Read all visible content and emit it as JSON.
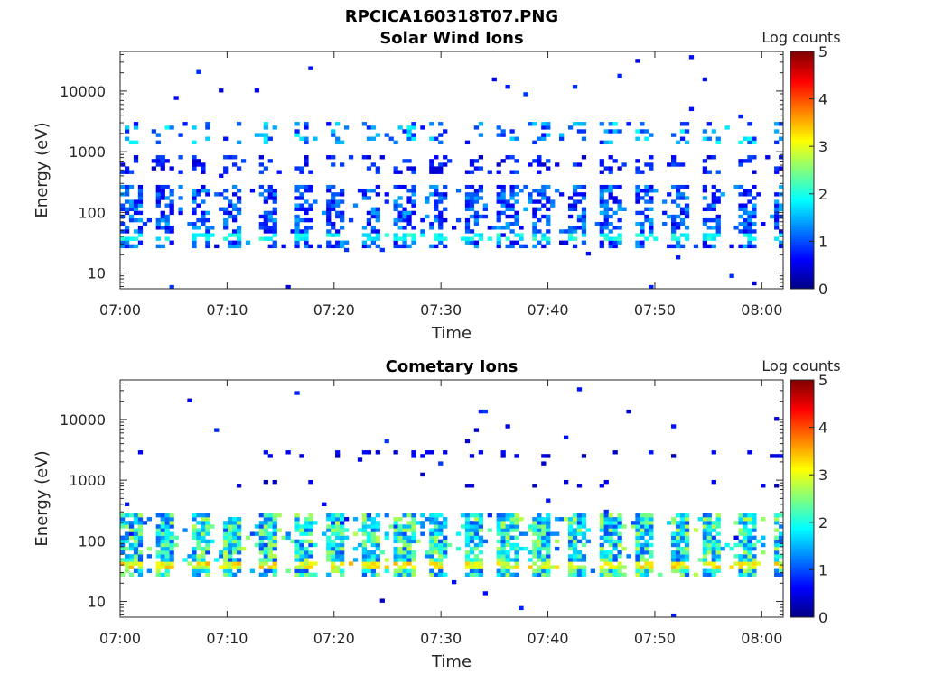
{
  "figure_title": "RPCICA160318T07.PNG",
  "chart_data": [
    {
      "type": "heatmap",
      "title": "Solar Wind Ions",
      "xlabel": "Time",
      "ylabel": "Energy (eV)",
      "x_ticks": [
        "07:00",
        "07:10",
        "07:20",
        "07:30",
        "07:40",
        "07:50",
        "08:00"
      ],
      "xlim": [
        "07:00",
        "08:02"
      ],
      "y_ticks": [
        10,
        100,
        1000,
        10000
      ],
      "y_tick_labels": [
        "10",
        "100",
        "1000",
        "10000"
      ],
      "ylim": [
        5.5,
        45000
      ],
      "y_scale": "log",
      "colorbar": {
        "label": "Log counts",
        "min": 0,
        "max": 5,
        "ticks": [
          "0",
          "1",
          "2",
          "3",
          "4",
          "5"
        ],
        "colormap": "jet"
      },
      "scan_period_min": 3.2,
      "bands": [
        {
          "energy_range_eV": [
            25,
            280
          ],
          "typical_log_counts": 1.0,
          "peak_log_counts": 2.2,
          "peak_energy_eV": 40,
          "fill_fraction": 0.55
        },
        {
          "energy_range_eV": [
            450,
            900
          ],
          "typical_log_counts": 0.7,
          "peak_log_counts": 1.2,
          "fill_fraction": 0.35
        },
        {
          "energy_range_eV": [
            1300,
            3300
          ],
          "typical_log_counts": 1.3,
          "peak_log_counts": 1.8,
          "fill_fraction": 0.25
        }
      ]
    },
    {
      "type": "heatmap",
      "title": "Cometary Ions",
      "xlabel": "Time",
      "ylabel": "Energy (eV)",
      "x_ticks": [
        "07:00",
        "07:10",
        "07:20",
        "07:30",
        "07:40",
        "07:50",
        "08:00"
      ],
      "xlim": [
        "07:00",
        "08:02"
      ],
      "y_ticks": [
        10,
        100,
        1000,
        10000
      ],
      "y_tick_labels": [
        "10",
        "100",
        "1000",
        "10000"
      ],
      "ylim": [
        5.5,
        45000
      ],
      "y_scale": "log",
      "colorbar": {
        "label": "Log counts",
        "min": 0,
        "max": 5,
        "ticks": [
          "0",
          "1",
          "2",
          "3",
          "4",
          "5"
        ],
        "colormap": "jet"
      },
      "scan_period_min": 3.2,
      "bands": [
        {
          "energy_range_eV": [
            25,
            280
          ],
          "typical_log_counts": 1.9,
          "peak_log_counts": 3.5,
          "peak_energy_eV": 40,
          "fill_fraction": 0.85
        },
        {
          "energy_range_eV": [
            2500,
            3200
          ],
          "typical_log_counts": 0.5,
          "peak_log_counts": 0.8,
          "fill_fraction": 0.2
        },
        {
          "energy_range_eV": [
            800,
            1000
          ],
          "typical_log_counts": 0.4,
          "peak_log_counts": 0.6,
          "fill_fraction": 0.1
        }
      ]
    }
  ]
}
